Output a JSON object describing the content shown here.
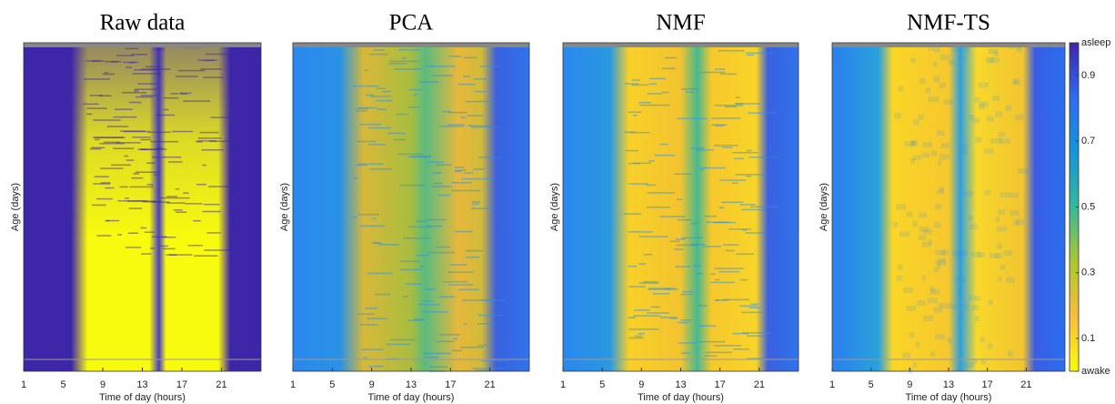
{
  "chart_data": [
    {
      "type": "heatmap",
      "title": "Raw data",
      "x_label": "Time of day (hours)",
      "y_label": "Age (days)",
      "xlim": [
        1,
        25
      ],
      "xticks": [
        1,
        5,
        9,
        13,
        17,
        21
      ]
    },
    {
      "type": "heatmap",
      "title": "PCA",
      "x_label": "Time of day (hours)",
      "y_label": "Age (days)",
      "xlim": [
        1,
        25
      ],
      "xticks": [
        1,
        5,
        9,
        13,
        17,
        21
      ]
    },
    {
      "type": "heatmap",
      "title": "NMF",
      "x_label": "Time of day (hours)",
      "y_label": "Age (days)",
      "xlim": [
        1,
        25
      ],
      "xticks": [
        1,
        5,
        9,
        13,
        17,
        21
      ]
    },
    {
      "type": "heatmap",
      "title": "NMF-TS",
      "x_label": "Time of day (hours)",
      "y_label": "Age (days)",
      "xlim": [
        1,
        25
      ],
      "xticks": [
        1,
        5,
        9,
        13,
        17,
        21
      ],
      "colormap": "parula",
      "clim": [
        0,
        1
      ],
      "cticks": [
        {
          "value": 0,
          "label": "awake"
        },
        0.1,
        0.3,
        0.5,
        0.7,
        0.9,
        {
          "value": 1,
          "label": "asleep"
        }
      ]
    }
  ]
}
